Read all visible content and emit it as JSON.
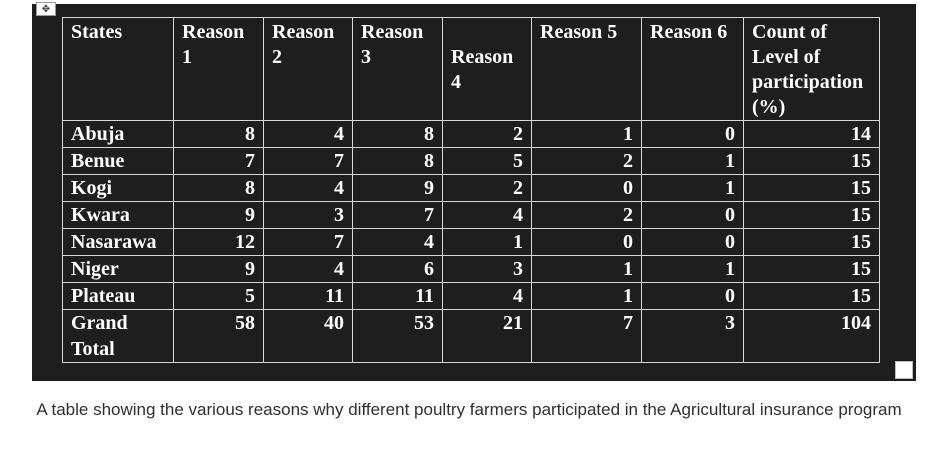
{
  "table": {
    "headers": [
      "States",
      "Reason 1",
      "Reason 2",
      "Reason 3",
      "Reason 4",
      "Reason 5",
      "Reason 6",
      "Count of Level of participation (%)"
    ],
    "rows": [
      {
        "state": "Abuja",
        "values": [
          "8",
          "4",
          "8",
          "2",
          "1",
          "0",
          "14"
        ]
      },
      {
        "state": "Benue",
        "values": [
          "7",
          "7",
          "8",
          "5",
          "2",
          "1",
          "15"
        ]
      },
      {
        "state": "Kogi",
        "values": [
          "8",
          "4",
          "9",
          "2",
          "0",
          "1",
          "15"
        ]
      },
      {
        "state": "Kwara",
        "values": [
          "9",
          "3",
          "7",
          "4",
          "2",
          "0",
          "15"
        ]
      },
      {
        "state": "Nasarawa",
        "values": [
          "12",
          "7",
          "4",
          "1",
          "0",
          "0",
          "15"
        ]
      },
      {
        "state": "Niger",
        "values": [
          "9",
          "4",
          "6",
          "3",
          "1",
          "1",
          "15"
        ]
      },
      {
        "state": "Plateau",
        "values": [
          "5",
          "11",
          "11",
          "4",
          "1",
          "0",
          "15"
        ]
      }
    ],
    "total": {
      "label": "Grand Total",
      "values": [
        "58",
        "40",
        "53",
        "21",
        "7",
        "3",
        "104"
      ]
    }
  },
  "caption": "A table showing the various reasons why different poultry farmers participated in the Agricultural insurance program"
}
